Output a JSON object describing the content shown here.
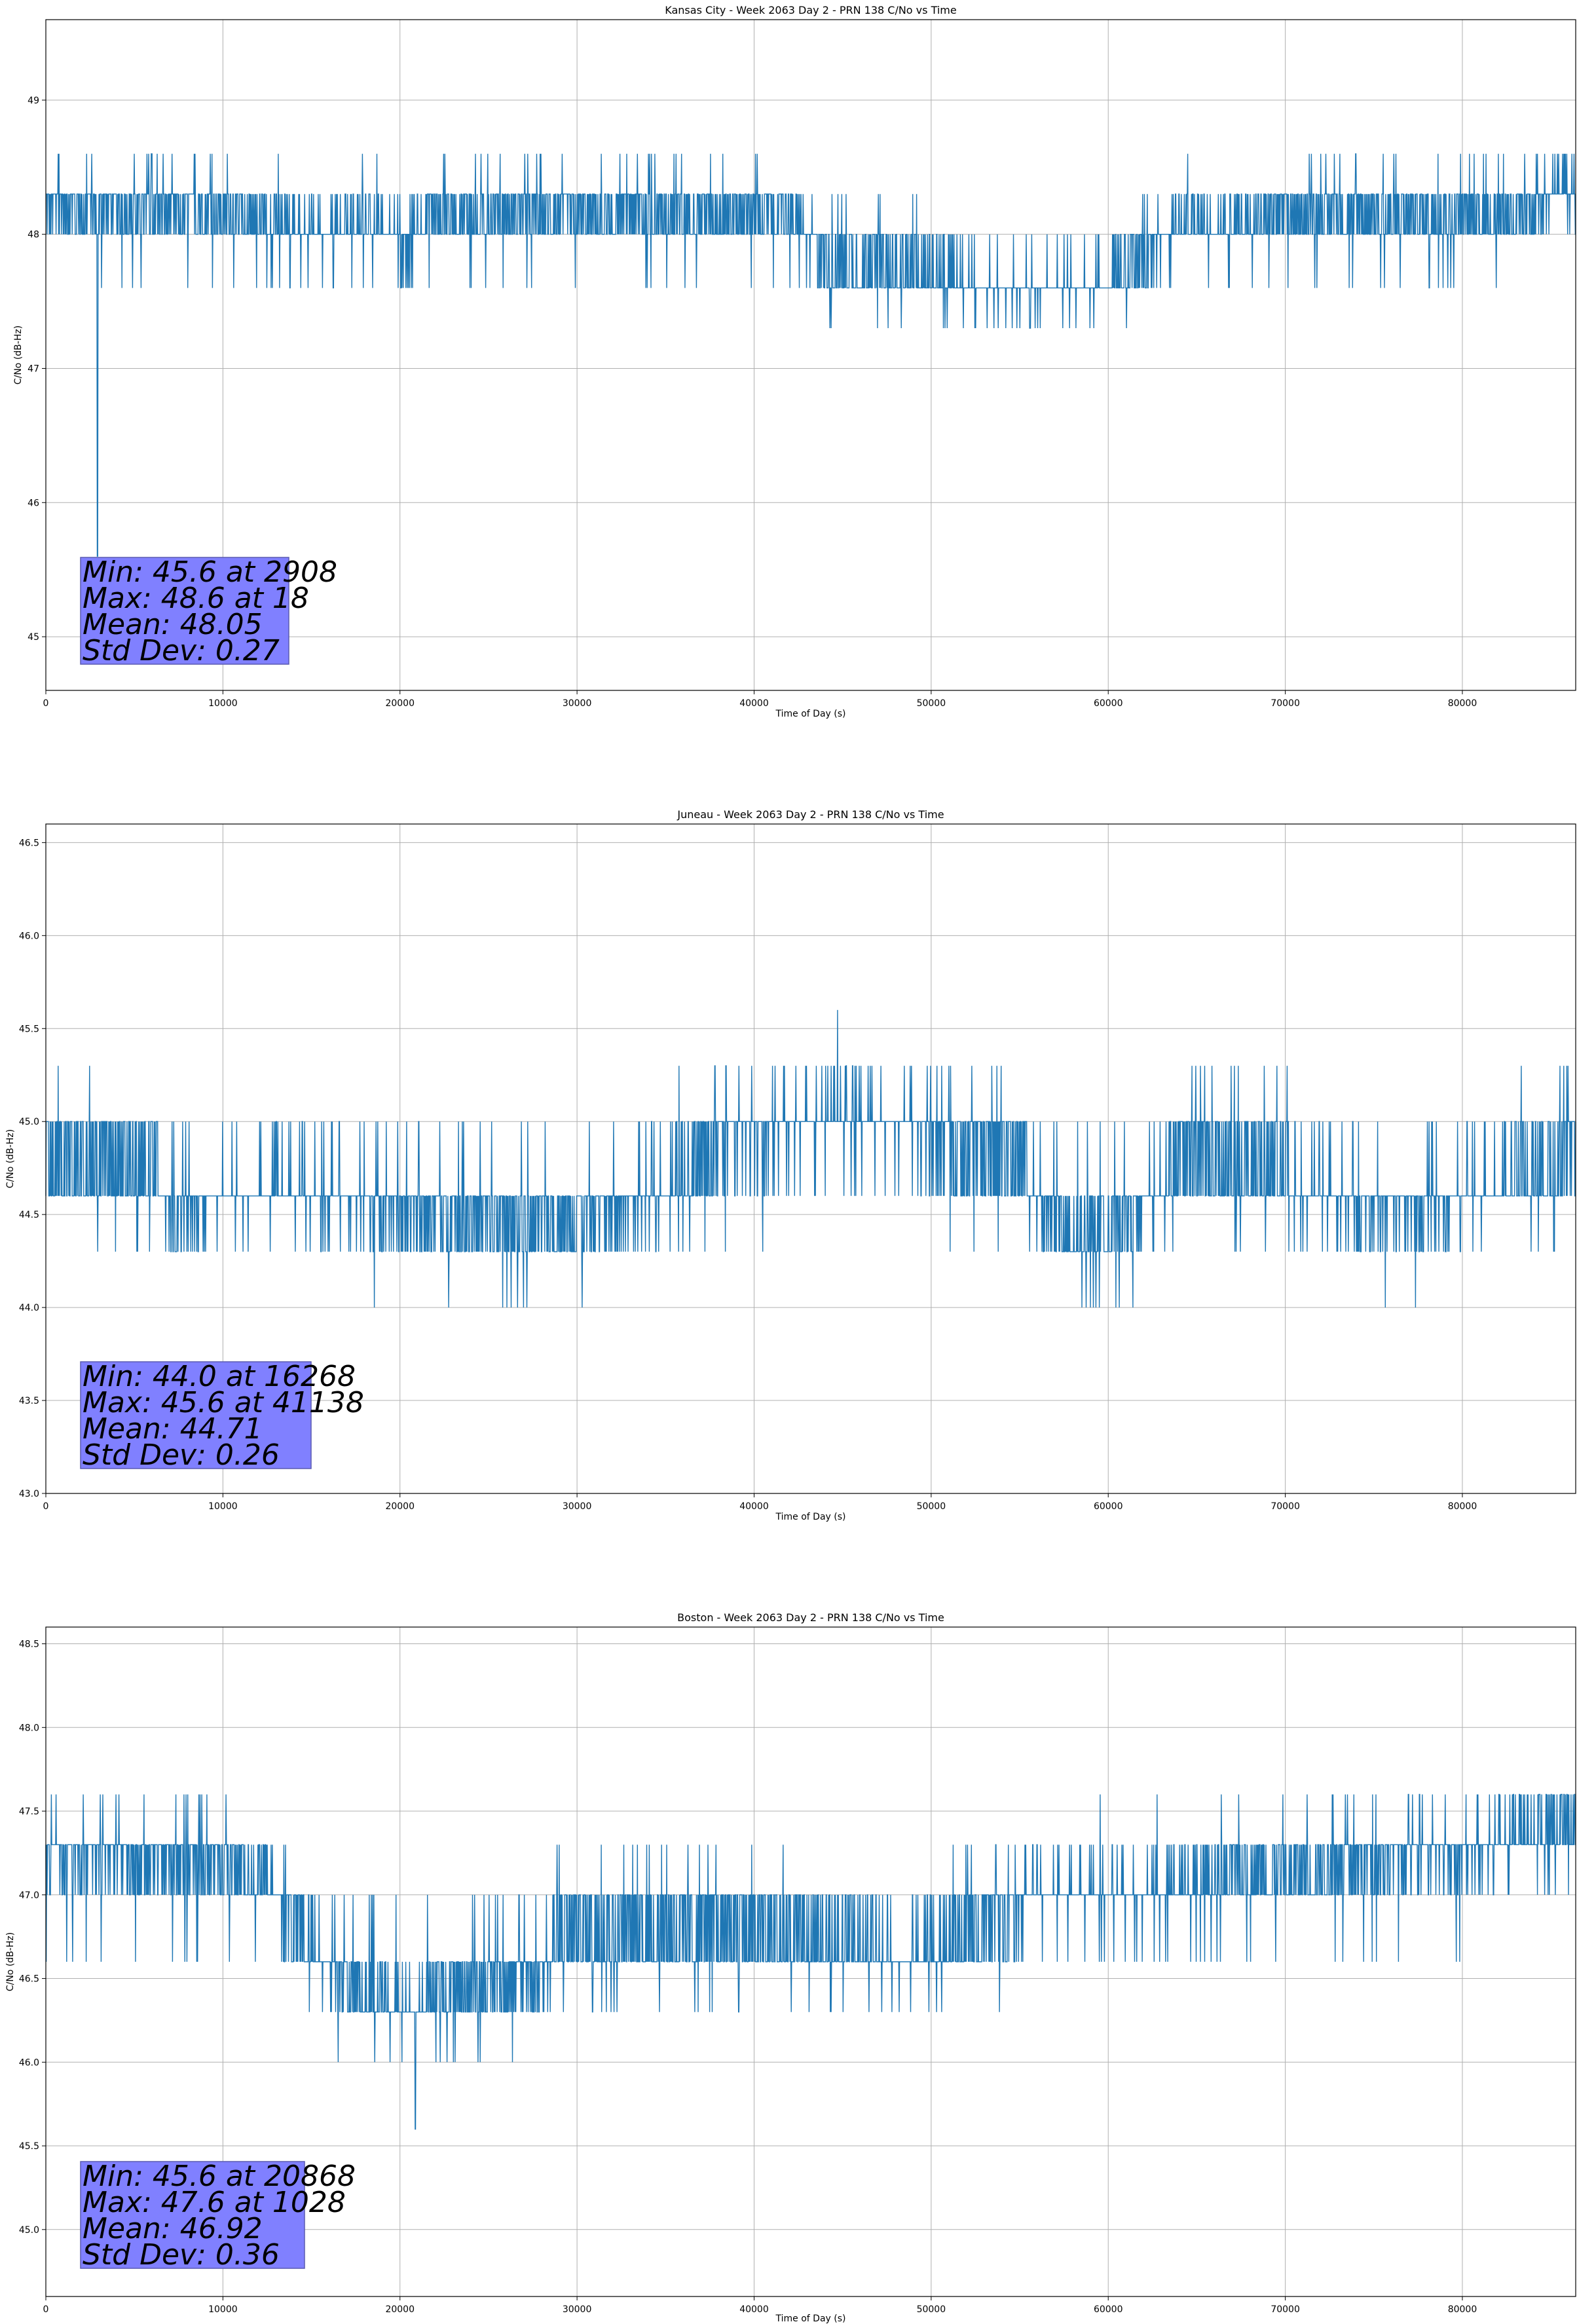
{
  "colors": {
    "series": "#1f77b4",
    "grid": "#b0b0b0",
    "stats_box": "#8080ff",
    "stats_border": "#5a5ab0"
  },
  "chart_data": [
    {
      "type": "line",
      "title": "Kansas City - Week 2063 Day 2 - PRN 138 C/No vs Time",
      "xlabel": "Time of Day (s)",
      "ylabel": "C/No (dB-Hz)",
      "xlim": [
        0,
        86400
      ],
      "ylim": [
        44.6,
        49.6
      ],
      "xticks": [
        0,
        10000,
        20000,
        30000,
        40000,
        50000,
        60000,
        70000,
        80000
      ],
      "yticks": [
        45,
        46,
        47,
        48,
        49
      ],
      "ytick_format": 0,
      "grid": true,
      "levels": [
        47.3,
        47.6,
        48.0,
        48.3,
        48.6
      ],
      "dip": {
        "x": 2908,
        "y": 45.6
      },
      "profile": [
        {
          "x": 0,
          "y": 48.2
        },
        {
          "x": 10000,
          "y": 48.15
        },
        {
          "x": 12500,
          "y": 48.1
        },
        {
          "x": 15000,
          "y": 47.95
        },
        {
          "x": 18000,
          "y": 48.1
        },
        {
          "x": 20500,
          "y": 47.85
        },
        {
          "x": 21500,
          "y": 48.15
        },
        {
          "x": 30000,
          "y": 48.15
        },
        {
          "x": 42000,
          "y": 48.15
        },
        {
          "x": 44000,
          "y": 47.8
        },
        {
          "x": 48000,
          "y": 47.75
        },
        {
          "x": 52000,
          "y": 47.65
        },
        {
          "x": 56000,
          "y": 47.6
        },
        {
          "x": 60000,
          "y": 47.65
        },
        {
          "x": 64000,
          "y": 48.05
        },
        {
          "x": 70000,
          "y": 48.15
        },
        {
          "x": 83500,
          "y": 48.15
        },
        {
          "x": 86400,
          "y": 48.4
        }
      ],
      "stats": [
        "Min: 45.6 at 2908",
        "Max: 48.6 at 18",
        "Mean: 48.05",
        "Std Dev: 0.27"
      ]
    },
    {
      "type": "line",
      "title": "Juneau - Week 2063 Day 2 - PRN 138 C/No vs Time",
      "xlabel": "Time of Day (s)",
      "ylabel": "C/No (dB-Hz)",
      "xlim": [
        0,
        86400
      ],
      "ylim": [
        43.0,
        46.6
      ],
      "xticks": [
        0,
        10000,
        20000,
        30000,
        40000,
        50000,
        60000,
        70000,
        80000
      ],
      "yticks": [
        43.0,
        43.5,
        44.0,
        44.5,
        45.0,
        45.5,
        46.0,
        46.5
      ],
      "ytick_format": 1,
      "grid": true,
      "levels": [
        44.0,
        44.3,
        44.6,
        45.0,
        45.3,
        45.6
      ],
      "dip": null,
      "profile": [
        {
          "x": 0,
          "y": 44.8
        },
        {
          "x": 6000,
          "y": 44.75
        },
        {
          "x": 7000,
          "y": 44.5
        },
        {
          "x": 10000,
          "y": 44.65
        },
        {
          "x": 15000,
          "y": 44.6
        },
        {
          "x": 22000,
          "y": 44.5
        },
        {
          "x": 28000,
          "y": 44.45
        },
        {
          "x": 34000,
          "y": 44.6
        },
        {
          "x": 38000,
          "y": 44.85
        },
        {
          "x": 42000,
          "y": 44.95
        },
        {
          "x": 46000,
          "y": 45.05
        },
        {
          "x": 50000,
          "y": 44.9
        },
        {
          "x": 55000,
          "y": 44.8
        },
        {
          "x": 58000,
          "y": 44.35
        },
        {
          "x": 61000,
          "y": 44.5
        },
        {
          "x": 64000,
          "y": 44.8
        },
        {
          "x": 68000,
          "y": 44.75
        },
        {
          "x": 74000,
          "y": 44.55
        },
        {
          "x": 80000,
          "y": 44.6
        },
        {
          "x": 86400,
          "y": 44.85
        }
      ],
      "stats": [
        "Min: 44.0 at 16268",
        "Max: 45.6 at 41138",
        "Mean: 44.71",
        "Std Dev: 0.26"
      ]
    },
    {
      "type": "line",
      "title": "Boston - Week 2063 Day 2 - PRN 138 C/No vs Time",
      "xlabel": "Time of Day (s)",
      "ylabel": "C/No (dB-Hz)",
      "xlim": [
        0,
        86400
      ],
      "ylim": [
        44.6,
        48.6
      ],
      "xticks": [
        0,
        10000,
        20000,
        30000,
        40000,
        50000,
        60000,
        70000,
        80000
      ],
      "yticks": [
        45.0,
        45.5,
        46.0,
        46.5,
        47.0,
        47.5,
        48.0,
        48.5
      ],
      "ytick_format": 1,
      "grid": true,
      "levels": [
        45.6,
        46.0,
        46.3,
        46.6,
        47.0,
        47.3,
        47.6
      ],
      "dip": {
        "x": 20868,
        "y": 45.6
      },
      "profile": [
        {
          "x": 0,
          "y": 47.25
        },
        {
          "x": 9000,
          "y": 47.2
        },
        {
          "x": 12500,
          "y": 47.1
        },
        {
          "x": 14000,
          "y": 46.8
        },
        {
          "x": 17000,
          "y": 46.5
        },
        {
          "x": 20000,
          "y": 46.3
        },
        {
          "x": 23000,
          "y": 46.45
        },
        {
          "x": 28000,
          "y": 46.55
        },
        {
          "x": 29000,
          "y": 46.8
        },
        {
          "x": 40000,
          "y": 46.8
        },
        {
          "x": 48000,
          "y": 46.65
        },
        {
          "x": 52000,
          "y": 46.75
        },
        {
          "x": 56000,
          "y": 47.0
        },
        {
          "x": 62000,
          "y": 47.0
        },
        {
          "x": 70000,
          "y": 47.15
        },
        {
          "x": 80000,
          "y": 47.25
        },
        {
          "x": 86400,
          "y": 47.45
        }
      ],
      "stats": [
        "Min: 45.6 at 20868",
        "Max: 47.6 at 1028",
        "Mean: 46.92",
        "Std Dev: 0.36"
      ]
    }
  ]
}
